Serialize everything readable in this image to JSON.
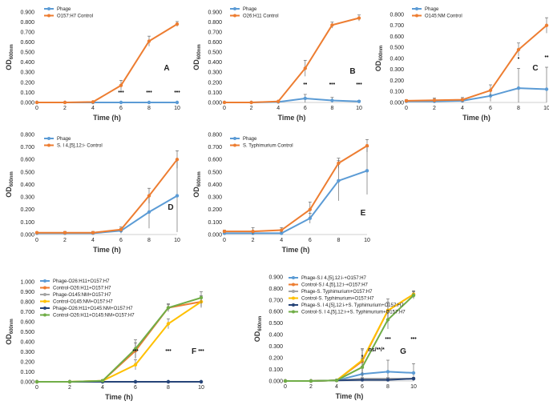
{
  "chart_data": [
    {
      "type": "line",
      "panel": "A",
      "x": [
        0,
        2,
        4,
        6,
        8,
        10
      ],
      "xticks": [
        "0",
        "2",
        "4",
        "6",
        "8",
        "10"
      ],
      "xlabel": "Time (h)",
      "ylabel_main": "OD",
      "ylabel_sub": "600nm",
      "ylim": [
        0,
        0.9
      ],
      "ytick_step": 0.1,
      "yticks": [
        "0.000",
        "0.100",
        "0.200",
        "0.300",
        "0.400",
        "0.500",
        "0.600",
        "0.700",
        "0.800",
        "0.900"
      ],
      "series": [
        {
          "name": "Phage",
          "color": "#5b9bd5",
          "values": [
            0,
            0,
            0,
            0,
            0,
            0
          ],
          "errors": [
            0,
            0,
            0,
            0.005,
            0.005,
            0.005
          ]
        },
        {
          "name": "O157:H7 Control",
          "color": "#ed7d31",
          "values": [
            0,
            0,
            0.005,
            0.17,
            0.61,
            0.78
          ],
          "errors": [
            0,
            0,
            0.005,
            0.05,
            0.05,
            0.025
          ]
        }
      ],
      "annotations": [
        {
          "x": 6,
          "text": "•••"
        },
        {
          "x": 8,
          "text": "•••"
        },
        {
          "x": 10,
          "text": "•••"
        }
      ]
    },
    {
      "type": "line",
      "panel": "B",
      "x": [
        0,
        2,
        4,
        6,
        8,
        10
      ],
      "xticks": [
        "0",
        "2",
        "4",
        "6",
        "8",
        "10"
      ],
      "xlabel": "Time (h)",
      "ylabel_main": "OD",
      "ylabel_sub": "600nm",
      "ylim": [
        0,
        0.9
      ],
      "ytick_step": 0.1,
      "yticks": [
        "0.000",
        "0.100",
        "0.200",
        "0.300",
        "0.400",
        "0.500",
        "0.600",
        "0.700",
        "0.800",
        "0.900"
      ],
      "series": [
        {
          "name": "Phage",
          "color": "#5b9bd5",
          "values": [
            0,
            0,
            0.005,
            0.04,
            0.02,
            0.01
          ],
          "errors": [
            0,
            0,
            0,
            0.04,
            0.03,
            0.01
          ]
        },
        {
          "name": "O26:H11 Control",
          "color": "#ed7d31",
          "values": [
            0,
            0,
            0.01,
            0.34,
            0.77,
            0.84
          ],
          "errors": [
            0,
            0,
            0.005,
            0.08,
            0.03,
            0.03
          ]
        }
      ],
      "annotations": [
        {
          "x": 6,
          "text": "••"
        },
        {
          "x": 8,
          "text": "•••"
        },
        {
          "x": 10,
          "text": "•••"
        }
      ]
    },
    {
      "type": "line",
      "panel": "C",
      "x": [
        0,
        2,
        4,
        6,
        8,
        10
      ],
      "xticks": [
        "0",
        "2",
        "4",
        "6",
        "8",
        "10"
      ],
      "xlabel": "Time (h)",
      "ylabel_main": "OD",
      "ylabel_sub": "600nm",
      "ylim": [
        0,
        0.8
      ],
      "ytick_step": 0.1,
      "yticks": [
        "0.000",
        "0.100",
        "0.200",
        "0.300",
        "0.400",
        "0.500",
        "0.600",
        "0.700",
        "0.800"
      ],
      "series": [
        {
          "name": "Phage",
          "color": "#5b9bd5",
          "values": [
            0.01,
            0.01,
            0.015,
            0.06,
            0.13,
            0.12
          ],
          "errors": [
            0.01,
            0.02,
            0.02,
            0.05,
            0.18,
            0.2
          ]
        },
        {
          "name": "O145:NM Control",
          "color": "#ed7d31",
          "values": [
            0.015,
            0.02,
            0.025,
            0.11,
            0.48,
            0.7
          ],
          "errors": [
            0.01,
            0.02,
            0.02,
            0.05,
            0.06,
            0.07
          ]
        }
      ],
      "annotations": [
        {
          "x": 8,
          "text": "•"
        },
        {
          "x": 10,
          "text": "••"
        }
      ]
    },
    {
      "type": "line",
      "panel": "D",
      "x": [
        0,
        2,
        4,
        6,
        8,
        10
      ],
      "xticks": [
        "0",
        "2",
        "4",
        "6",
        "8",
        "10"
      ],
      "xlabel": "Time (h)",
      "ylabel_main": "OD",
      "ylabel_sub": "600nm",
      "ylim": [
        0,
        0.8
      ],
      "ytick_step": 0.1,
      "yticks": [
        "0.000",
        "0.100",
        "0.200",
        "0.300",
        "0.400",
        "0.500",
        "0.600",
        "0.700",
        "0.800"
      ],
      "series": [
        {
          "name": "Phage",
          "color": "#5b9bd5",
          "values": [
            0.01,
            0.01,
            0.01,
            0.03,
            0.18,
            0.31
          ],
          "errors": [
            0.005,
            0.01,
            0.01,
            0.02,
            0.13,
            0.29
          ]
        },
        {
          "name": "S. I 4,[5],12:i- Control",
          "color": "#ed7d31",
          "values": [
            0.015,
            0.015,
            0.015,
            0.04,
            0.31,
            0.6
          ],
          "errors": [
            0.005,
            0.01,
            0.01,
            0.02,
            0.06,
            0.07
          ]
        }
      ],
      "annotations": []
    },
    {
      "type": "line",
      "panel": "E",
      "x": [
        0,
        2,
        4,
        6,
        8,
        10
      ],
      "xticks": [
        "0",
        "2",
        "4",
        "6",
        "8",
        "10"
      ],
      "xlabel": "Time (h)",
      "ylabel_main": "OD",
      "ylabel_sub": "600nm",
      "ylim": [
        0,
        0.8
      ],
      "ytick_step": 0.1,
      "yticks": [
        "0.000",
        "0.100",
        "0.200",
        "0.300",
        "0.400",
        "0.500",
        "0.600",
        "0.700",
        "0.800"
      ],
      "series": [
        {
          "name": "Phage",
          "color": "#5b9bd5",
          "values": [
            0.01,
            0.01,
            0.01,
            0.13,
            0.43,
            0.51
          ],
          "errors": [
            0.01,
            0.02,
            0.01,
            0.04,
            0.16,
            0.19
          ]
        },
        {
          "name": "S. Typhimurium Control",
          "color": "#ed7d31",
          "values": [
            0.025,
            0.025,
            0.035,
            0.2,
            0.57,
            0.71
          ],
          "errors": [
            0.01,
            0.03,
            0.02,
            0.06,
            0.04,
            0.05
          ]
        }
      ],
      "annotations": []
    },
    {
      "type": "line",
      "panel": "F",
      "x": [
        0,
        2,
        4,
        6,
        8,
        10
      ],
      "xticks": [
        "0",
        "2",
        "4",
        "6",
        "8",
        "10"
      ],
      "xlabel": "Time (h)",
      "ylabel_main": "OD",
      "ylabel_sub": "600nm",
      "ylim": [
        0,
        1.0
      ],
      "ytick_step": 0.1,
      "yticks": [
        "0.000",
        "0.100",
        "0.200",
        "0.300",
        "0.400",
        "0.500",
        "0.600",
        "0.700",
        "0.800",
        "0.900",
        "1.000"
      ],
      "series": [
        {
          "name": "Phage-O26:H11+O157:H7",
          "color": "#5b9bd5",
          "values": [
            0,
            0,
            0,
            0,
            0,
            0
          ],
          "errors": [
            0,
            0,
            0,
            0,
            0,
            0
          ]
        },
        {
          "name": "Control-O26:H11+O157:H7",
          "color": "#ed7d31",
          "values": [
            0,
            0,
            0.01,
            0.31,
            0.74,
            0.8
          ],
          "errors": [
            0,
            0,
            0.01,
            0.08,
            0.04,
            0.05
          ]
        },
        {
          "name": "Phage-O145:NM+O157:H7",
          "color": "#a5a5a5",
          "values": [
            0,
            0,
            0,
            0,
            0,
            0
          ],
          "errors": [
            0,
            0,
            0,
            0,
            0,
            0
          ]
        },
        {
          "name": "Control-O145:NM+O157:H7",
          "color": "#ffc000",
          "values": [
            0,
            0,
            0.01,
            0.17,
            0.58,
            0.8
          ],
          "errors": [
            0,
            0,
            0.01,
            0.05,
            0.05,
            0.06
          ]
        },
        {
          "name": "Phage-O26:H11+O145:NM+O157:H7",
          "color": "#264478",
          "values": [
            0,
            0,
            0,
            0,
            0,
            0
          ],
          "errors": [
            0,
            0,
            0,
            0,
            0,
            0
          ]
        },
        {
          "name": "Control-O26:H11+O145:NM+O157:H7",
          "color": "#70ad47",
          "values": [
            0,
            0,
            0.01,
            0.33,
            0.74,
            0.84
          ],
          "errors": [
            0,
            0,
            0.01,
            0.09,
            0.03,
            0.06
          ]
        }
      ],
      "annotations": [
        {
          "x": 6,
          "text": "•••"
        },
        {
          "x": 8,
          "text": "•••"
        },
        {
          "x": 10,
          "text": "•••"
        }
      ]
    },
    {
      "type": "line",
      "panel": "G",
      "x": [
        0,
        2,
        4,
        6,
        8,
        10
      ],
      "xticks": [
        "0",
        "2",
        "4",
        "6",
        "8",
        "10"
      ],
      "xlabel": "Time (h)",
      "ylabel_main": "OD",
      "ylabel_sub": "600nm",
      "ylim": [
        0,
        0.9
      ],
      "ytick_step": 0.1,
      "yticks": [
        "0.000",
        "0.100",
        "0.200",
        "0.300",
        "0.400",
        "0.500",
        "0.600",
        "0.700",
        "0.800",
        "0.900"
      ],
      "series": [
        {
          "name": "Phage-S.I 4,[5],12:i-+O157:H7",
          "color": "#5b9bd5",
          "values": [
            0,
            0,
            0.005,
            0.06,
            0.08,
            0.07
          ],
          "errors": [
            0,
            0,
            0.005,
            0.05,
            0.1,
            0.08
          ]
        },
        {
          "name": "Control-S.I 4,[5],12:i-+O157:H7",
          "color": "#ed7d31",
          "values": [
            0,
            0,
            0.005,
            0.17,
            0.61,
            0.75
          ],
          "errors": [
            0,
            0,
            0.01,
            0.1,
            0.07,
            0.03
          ]
        },
        {
          "name": "Phage-S. Typhimurium+O157:H7",
          "color": "#a5a5a5",
          "values": [
            0,
            0,
            0.005,
            0.02,
            0.02,
            0.02
          ],
          "errors": [
            0,
            0,
            0.005,
            0.01,
            0.01,
            0.01
          ]
        },
        {
          "name": "Control-S. Typhimurium+O157:H7",
          "color": "#ffc000",
          "values": [
            0,
            0,
            0.005,
            0.18,
            0.61,
            0.75
          ],
          "errors": [
            0,
            0,
            0.01,
            0.1,
            0.1,
            0.03
          ]
        },
        {
          "name": "Phage-S. I 4,[5],12:i-+S. Typhimurium+O157:H7",
          "color": "#264478",
          "values": [
            0,
            0,
            0.005,
            0.01,
            0.01,
            0.02
          ],
          "errors": [
            0,
            0,
            0.005,
            0.01,
            0.01,
            0.01
          ]
        },
        {
          "name": "Control-S. I 4,[5],12:i-+S. Typhimurium+O157:H7",
          "color": "#70ad47",
          "values": [
            0,
            0,
            0.005,
            0.12,
            0.53,
            0.74
          ],
          "errors": [
            0,
            0,
            0.01,
            0.08,
            0.08,
            0.03
          ]
        }
      ],
      "annotations": [
        {
          "x": 6,
          "text": "*"
        },
        {
          "x": 7.1,
          "text": "ns/**/*"
        },
        {
          "x": 8,
          "text": "•••"
        },
        {
          "x": 10,
          "text": "•••"
        }
      ]
    }
  ]
}
